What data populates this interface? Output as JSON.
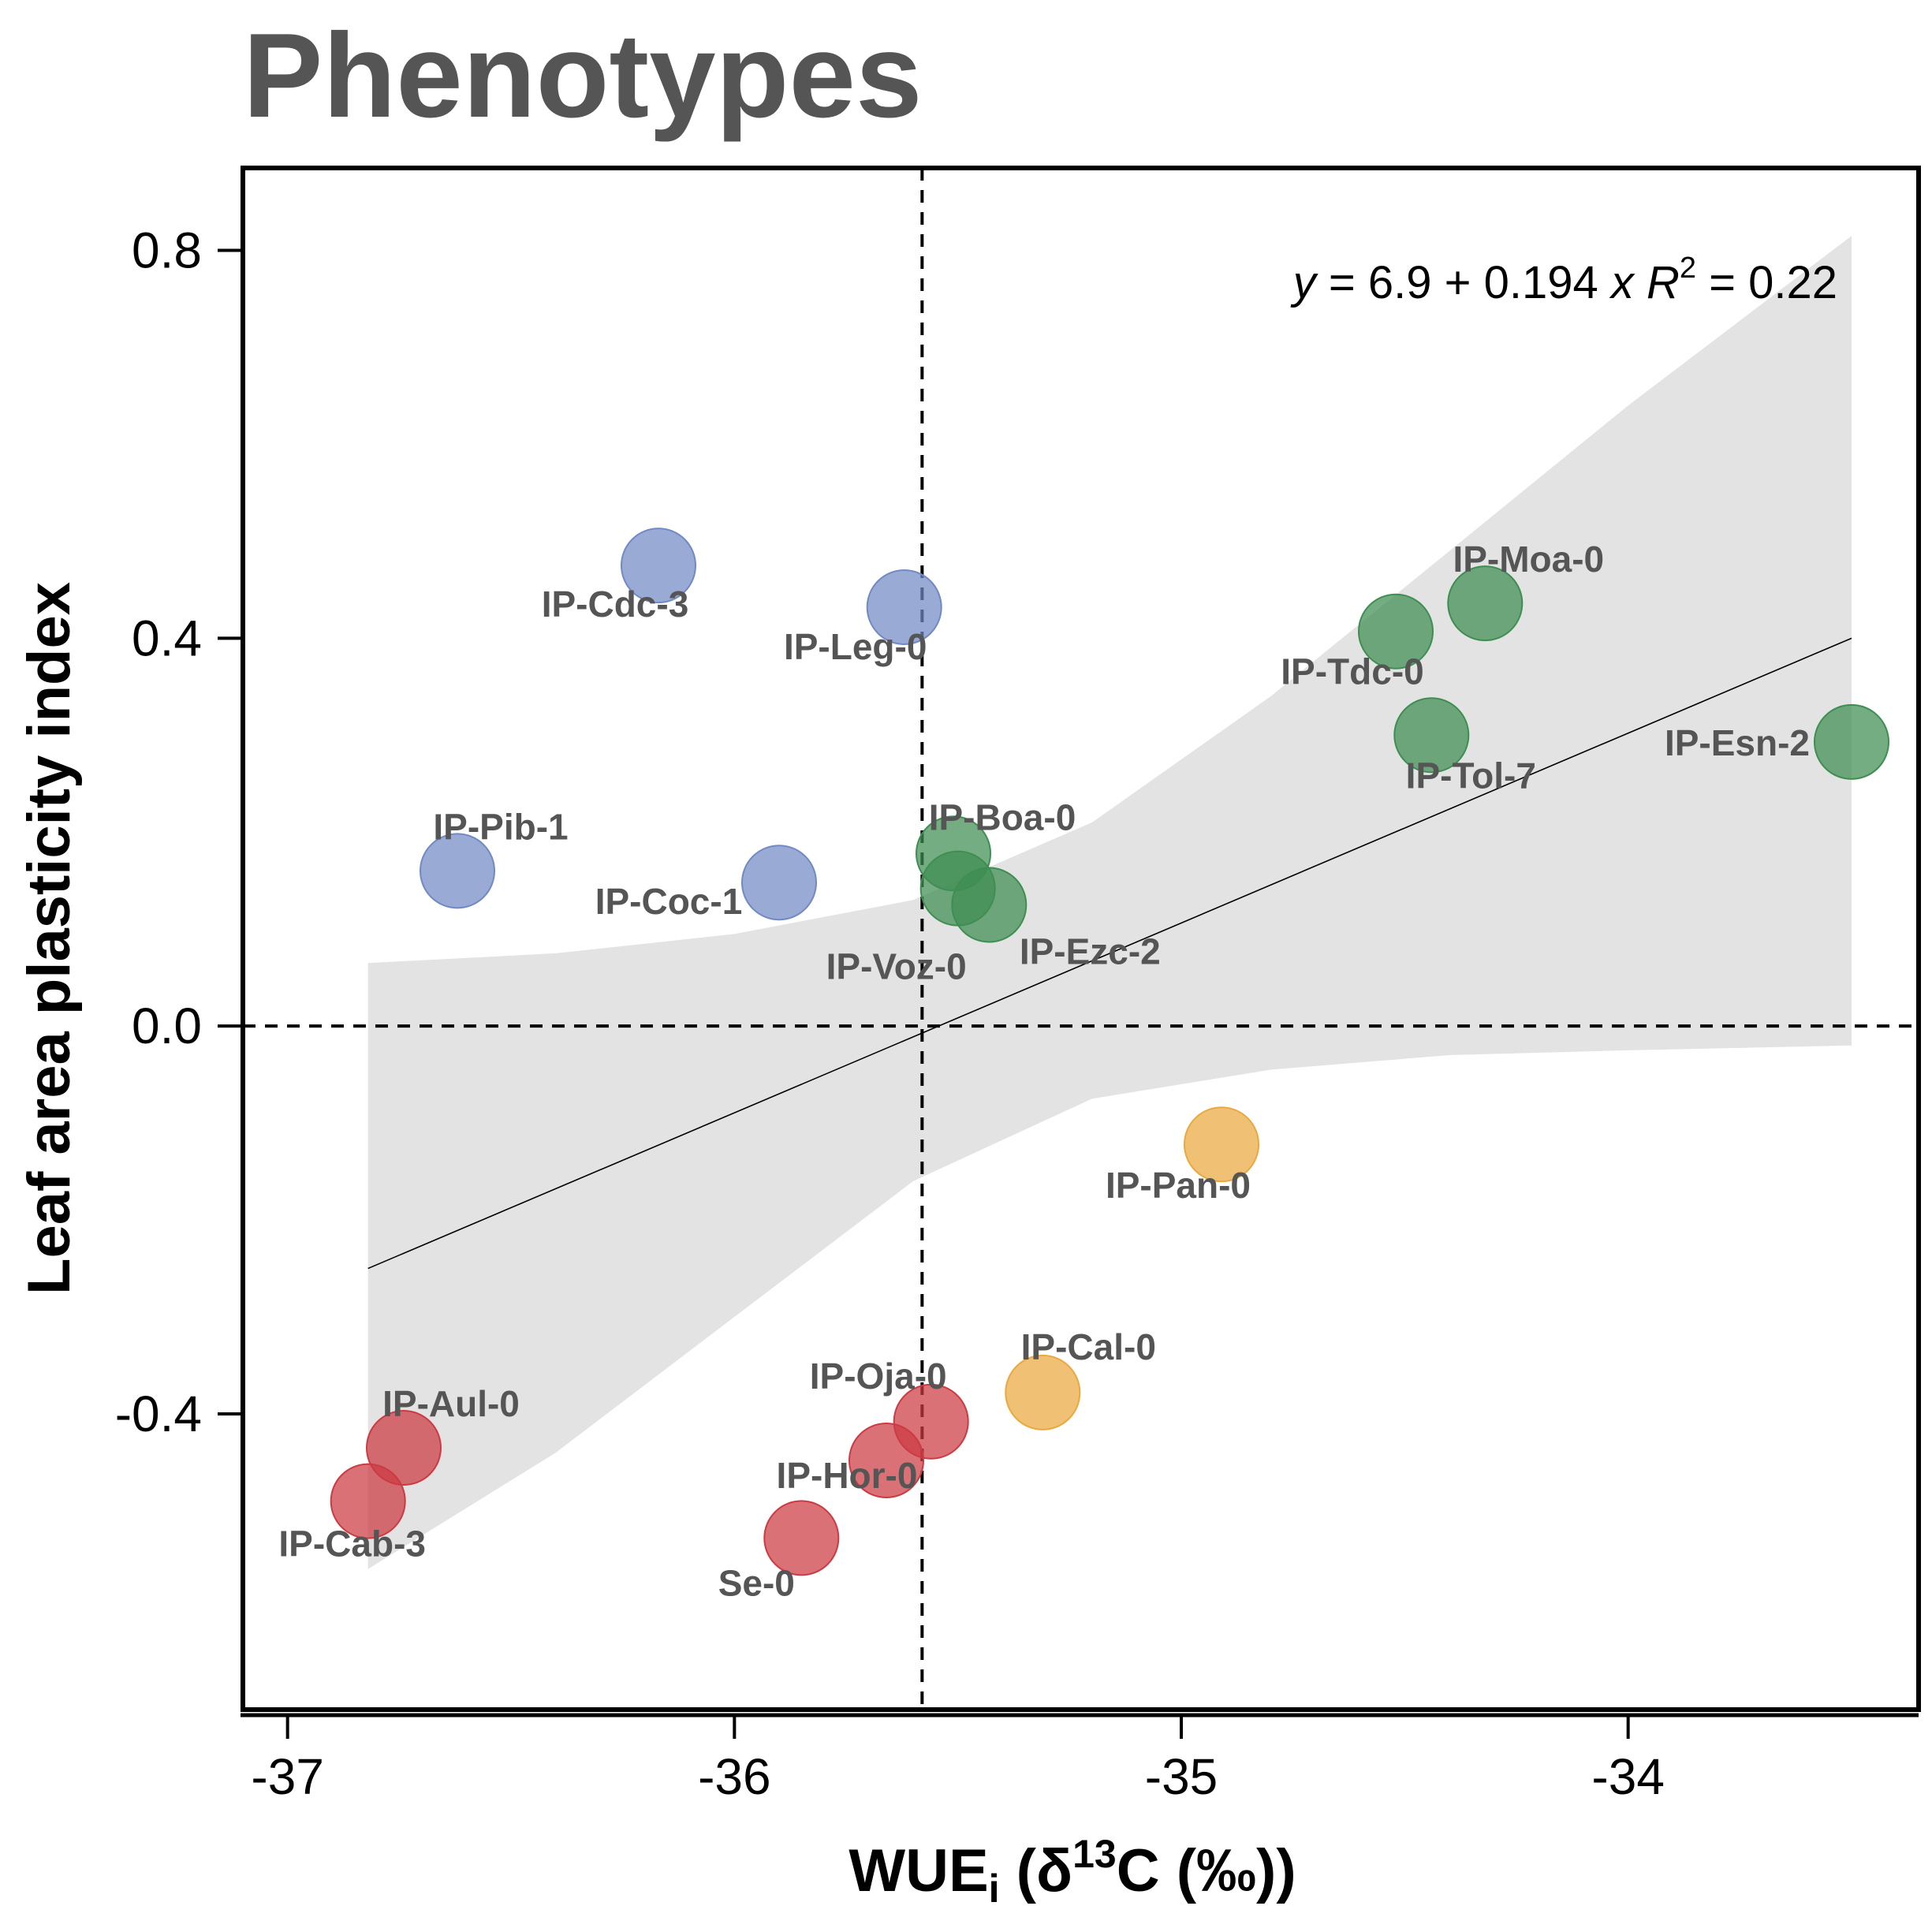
{
  "chart_data": {
    "type": "scatter",
    "title": "Phenotypes",
    "xlabel": {
      "base": "WUE",
      "sub": "i",
      "mid": " (δ",
      "sup": "13",
      "tail": "C (‰))"
    },
    "ylabel": "Leaf area plasticity index",
    "xlim": [
      -37.1,
      -33.35
    ],
    "ylim": [
      -0.705,
      0.885
    ],
    "xticks": [
      -37,
      -36,
      -35,
      -34
    ],
    "xtick_labels": [
      "-37",
      "-36",
      "-35",
      "-34"
    ],
    "yticks": [
      -0.4,
      0.0,
      0.4,
      0.8
    ],
    "ytick_labels": [
      "-0.4",
      "0.0",
      "0.4",
      "0.8"
    ],
    "reference_lines": {
      "x": -35.58,
      "y": 0.0,
      "style": "dashed"
    },
    "regression": {
      "x_range": [
        -36.82,
        -33.5
      ],
      "y_start": -0.25,
      "y_end": 0.4,
      "ci_band": {
        "x": [
          -36.82,
          -36.4,
          -36.0,
          -35.6,
          -35.2,
          -34.8,
          -34.4,
          -34.0,
          -33.5
        ],
        "upper": [
          0.065,
          0.075,
          0.095,
          0.13,
          0.21,
          0.34,
          0.49,
          0.64,
          0.815
        ],
        "lower": [
          -0.56,
          -0.44,
          -0.3,
          -0.16,
          -0.075,
          -0.045,
          -0.03,
          -0.025,
          -0.02
        ]
      }
    },
    "equation": {
      "y": "y",
      "eq": " = 6.9 + 0.194 ",
      "x": "x",
      "r": "R",
      "sup": "2",
      "r_eq": " = 0.22"
    },
    "groups": {
      "blue": "#7189C4",
      "green": "#3E8E52",
      "orange": "#EAA83E",
      "red": "#CC3A42"
    },
    "points": [
      {
        "name": "IP-Cdc-3",
        "x": -36.17,
        "y": 0.475,
        "group": "blue"
      },
      {
        "name": "IP-Leg-0",
        "x": -35.62,
        "y": 0.432,
        "group": "blue"
      },
      {
        "name": "IP-Pib-1",
        "x": -36.62,
        "y": 0.16,
        "group": "blue"
      },
      {
        "name": "IP-Coc-1",
        "x": -35.9,
        "y": 0.148,
        "group": "blue"
      },
      {
        "name": "IP-Moa-0",
        "x": -34.32,
        "y": 0.436,
        "group": "green"
      },
      {
        "name": "IP-Tdc-0",
        "x": -34.52,
        "y": 0.407,
        "group": "green"
      },
      {
        "name": "IP-Tol-7",
        "x": -34.44,
        "y": 0.3,
        "group": "green"
      },
      {
        "name": "IP-Esn-2",
        "x": -33.5,
        "y": 0.293,
        "group": "green"
      },
      {
        "name": "IP-Boa-0",
        "x": -35.51,
        "y": 0.178,
        "group": "green"
      },
      {
        "name": "IP-Voz-0",
        "x": -35.5,
        "y": 0.142,
        "group": "green"
      },
      {
        "name": "IP-Ezc-2",
        "x": -35.43,
        "y": 0.125,
        "group": "green"
      },
      {
        "name": "IP-Pan-0",
        "x": -34.91,
        "y": -0.122,
        "group": "orange"
      },
      {
        "name": "IP-Cal-0",
        "x": -35.31,
        "y": -0.378,
        "group": "orange"
      },
      {
        "name": "IP-Oja-0",
        "x": -35.56,
        "y": -0.408,
        "group": "red"
      },
      {
        "name": "IP-Hor-0",
        "x": -35.66,
        "y": -0.448,
        "group": "red"
      },
      {
        "name": "Se-0",
        "x": -35.85,
        "y": -0.528,
        "group": "red"
      },
      {
        "name": "IP-Aul-0",
        "x": -36.74,
        "y": -0.435,
        "group": "red"
      },
      {
        "name": "IP-Cab-3",
        "x": -36.82,
        "y": -0.49,
        "group": "red"
      }
    ]
  }
}
